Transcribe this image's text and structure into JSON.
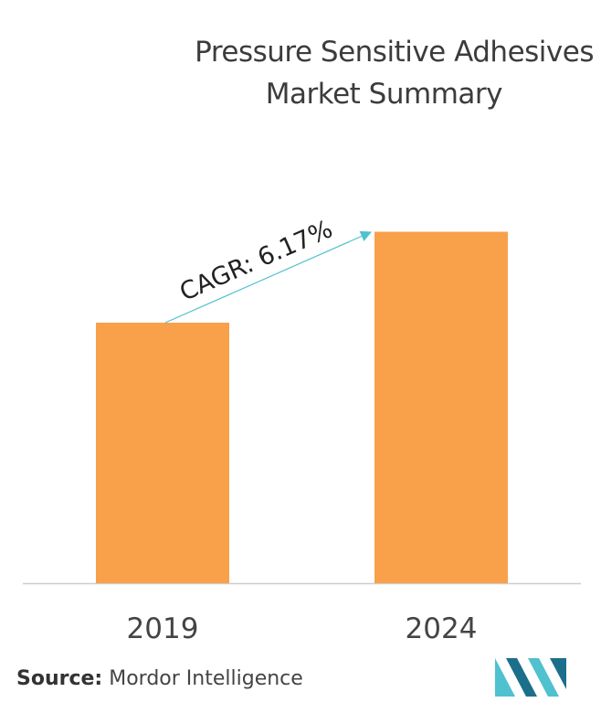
{
  "title": {
    "line1": "Pressure Sensitive Adhesives",
    "line2": "Market Summary"
  },
  "chart_data": {
    "type": "bar",
    "categories": [
      "2019",
      "2024"
    ],
    "values": [
      1,
      1.349
    ],
    "annotation": "CAGR: 6.17%",
    "bar_color": "#f9a04a",
    "axis_color": "#cccccc",
    "arrow_color": "#4fc1cf",
    "grid": false
  },
  "source": {
    "label": "Source:",
    "text": "Mordor Intelligence"
  },
  "logo": {
    "icon": "mordor-intelligence-logo",
    "colors": [
      "#1b6f8a",
      "#4fc1cf"
    ]
  }
}
